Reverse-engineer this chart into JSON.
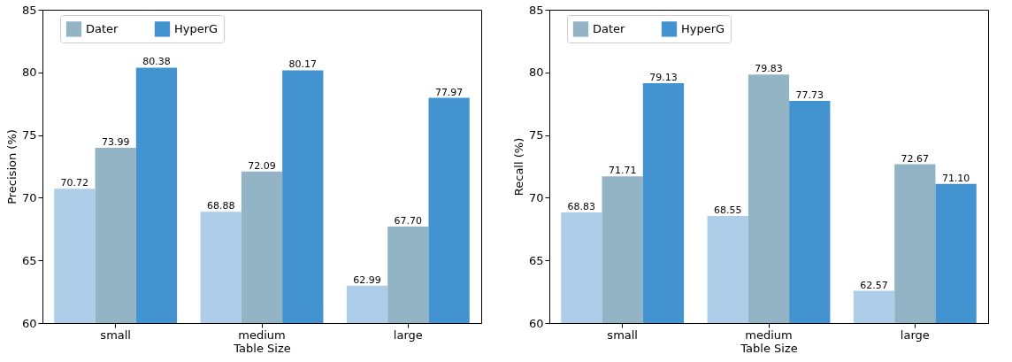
{
  "chart_data": [
    {
      "type": "bar",
      "xlabel": "Table Size",
      "ylabel": "Precision (%)",
      "categories": [
        "small",
        "medium",
        "large"
      ],
      "ylim": [
        60,
        85
      ],
      "yticks": [
        60,
        65,
        70,
        75,
        80,
        85
      ],
      "grid": false,
      "legend": "top",
      "data_labels": true,
      "series": [
        {
          "color": "#aecde9",
          "values": [
            70.72,
            68.88,
            62.99
          ]
        },
        {
          "name": "Dater",
          "color": "#93b4c4",
          "values": [
            73.99,
            72.09,
            67.7
          ],
          "value_labels": [
            "73.99",
            "72.09",
            "67.70"
          ]
        },
        {
          "name": "HyperG",
          "color": "#4393d0",
          "values": [
            80.38,
            80.17,
            77.97
          ]
        }
      ]
    },
    {
      "type": "bar",
      "xlabel": "Table Size",
      "ylabel": "Recall (%)",
      "categories": [
        "small",
        "medium",
        "large"
      ],
      "ylim": [
        60,
        85
      ],
      "yticks": [
        60,
        65,
        70,
        75,
        80,
        85
      ],
      "grid": false,
      "legend": "top",
      "data_labels": true,
      "series": [
        {
          "color": "#aecde9",
          "values": [
            68.83,
            68.55,
            62.57
          ]
        },
        {
          "name": "Dater",
          "color": "#93b4c4",
          "values": [
            71.71,
            79.83,
            72.67
          ]
        },
        {
          "name": "HyperG",
          "color": "#4393d0",
          "values": [
            79.13,
            77.73,
            71.1
          ],
          "value_labels": [
            "79.13",
            "77.73",
            "71.10"
          ]
        }
      ]
    }
  ]
}
